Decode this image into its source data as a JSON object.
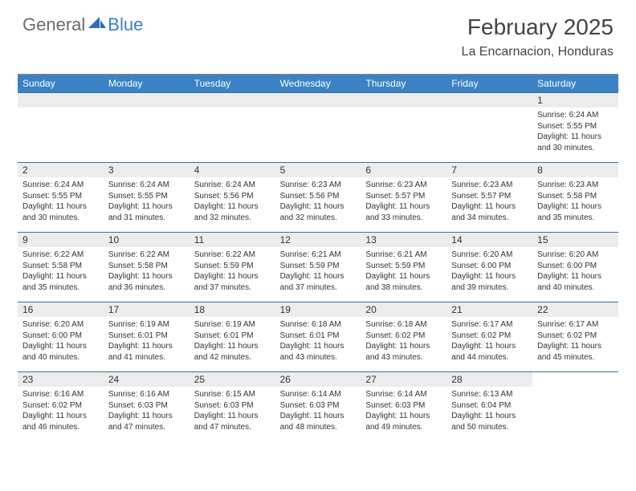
{
  "logo": {
    "general": "General",
    "blue": "Blue"
  },
  "title": "February 2025",
  "location": "La Encarnacion, Honduras",
  "colors": {
    "header_bg": "#3b82c4",
    "header_text": "#ffffff",
    "daynum_bg": "#ececec",
    "week_border": "#3b6fa0",
    "text": "#333333",
    "logo_gray": "#6b6b6b",
    "logo_blue": "#3a7fc4"
  },
  "weekdays": [
    "Sunday",
    "Monday",
    "Tuesday",
    "Wednesday",
    "Thursday",
    "Friday",
    "Saturday"
  ],
  "weeks": [
    [
      null,
      null,
      null,
      null,
      null,
      null,
      {
        "n": "1",
        "sr": "Sunrise: 6:24 AM",
        "ss": "Sunset: 5:55 PM",
        "dl": "Daylight: 11 hours and 30 minutes."
      }
    ],
    [
      {
        "n": "2",
        "sr": "Sunrise: 6:24 AM",
        "ss": "Sunset: 5:55 PM",
        "dl": "Daylight: 11 hours and 30 minutes."
      },
      {
        "n": "3",
        "sr": "Sunrise: 6:24 AM",
        "ss": "Sunset: 5:55 PM",
        "dl": "Daylight: 11 hours and 31 minutes."
      },
      {
        "n": "4",
        "sr": "Sunrise: 6:24 AM",
        "ss": "Sunset: 5:56 PM",
        "dl": "Daylight: 11 hours and 32 minutes."
      },
      {
        "n": "5",
        "sr": "Sunrise: 6:23 AM",
        "ss": "Sunset: 5:56 PM",
        "dl": "Daylight: 11 hours and 32 minutes."
      },
      {
        "n": "6",
        "sr": "Sunrise: 6:23 AM",
        "ss": "Sunset: 5:57 PM",
        "dl": "Daylight: 11 hours and 33 minutes."
      },
      {
        "n": "7",
        "sr": "Sunrise: 6:23 AM",
        "ss": "Sunset: 5:57 PM",
        "dl": "Daylight: 11 hours and 34 minutes."
      },
      {
        "n": "8",
        "sr": "Sunrise: 6:23 AM",
        "ss": "Sunset: 5:58 PM",
        "dl": "Daylight: 11 hours and 35 minutes."
      }
    ],
    [
      {
        "n": "9",
        "sr": "Sunrise: 6:22 AM",
        "ss": "Sunset: 5:58 PM",
        "dl": "Daylight: 11 hours and 35 minutes."
      },
      {
        "n": "10",
        "sr": "Sunrise: 6:22 AM",
        "ss": "Sunset: 5:58 PM",
        "dl": "Daylight: 11 hours and 36 minutes."
      },
      {
        "n": "11",
        "sr": "Sunrise: 6:22 AM",
        "ss": "Sunset: 5:59 PM",
        "dl": "Daylight: 11 hours and 37 minutes."
      },
      {
        "n": "12",
        "sr": "Sunrise: 6:21 AM",
        "ss": "Sunset: 5:59 PM",
        "dl": "Daylight: 11 hours and 37 minutes."
      },
      {
        "n": "13",
        "sr": "Sunrise: 6:21 AM",
        "ss": "Sunset: 5:59 PM",
        "dl": "Daylight: 11 hours and 38 minutes."
      },
      {
        "n": "14",
        "sr": "Sunrise: 6:20 AM",
        "ss": "Sunset: 6:00 PM",
        "dl": "Daylight: 11 hours and 39 minutes."
      },
      {
        "n": "15",
        "sr": "Sunrise: 6:20 AM",
        "ss": "Sunset: 6:00 PM",
        "dl": "Daylight: 11 hours and 40 minutes."
      }
    ],
    [
      {
        "n": "16",
        "sr": "Sunrise: 6:20 AM",
        "ss": "Sunset: 6:00 PM",
        "dl": "Daylight: 11 hours and 40 minutes."
      },
      {
        "n": "17",
        "sr": "Sunrise: 6:19 AM",
        "ss": "Sunset: 6:01 PM",
        "dl": "Daylight: 11 hours and 41 minutes."
      },
      {
        "n": "18",
        "sr": "Sunrise: 6:19 AM",
        "ss": "Sunset: 6:01 PM",
        "dl": "Daylight: 11 hours and 42 minutes."
      },
      {
        "n": "19",
        "sr": "Sunrise: 6:18 AM",
        "ss": "Sunset: 6:01 PM",
        "dl": "Daylight: 11 hours and 43 minutes."
      },
      {
        "n": "20",
        "sr": "Sunrise: 6:18 AM",
        "ss": "Sunset: 6:02 PM",
        "dl": "Daylight: 11 hours and 43 minutes."
      },
      {
        "n": "21",
        "sr": "Sunrise: 6:17 AM",
        "ss": "Sunset: 6:02 PM",
        "dl": "Daylight: 11 hours and 44 minutes."
      },
      {
        "n": "22",
        "sr": "Sunrise: 6:17 AM",
        "ss": "Sunset: 6:02 PM",
        "dl": "Daylight: 11 hours and 45 minutes."
      }
    ],
    [
      {
        "n": "23",
        "sr": "Sunrise: 6:16 AM",
        "ss": "Sunset: 6:02 PM",
        "dl": "Daylight: 11 hours and 46 minutes."
      },
      {
        "n": "24",
        "sr": "Sunrise: 6:16 AM",
        "ss": "Sunset: 6:03 PM",
        "dl": "Daylight: 11 hours and 47 minutes."
      },
      {
        "n": "25",
        "sr": "Sunrise: 6:15 AM",
        "ss": "Sunset: 6:03 PM",
        "dl": "Daylight: 11 hours and 47 minutes."
      },
      {
        "n": "26",
        "sr": "Sunrise: 6:14 AM",
        "ss": "Sunset: 6:03 PM",
        "dl": "Daylight: 11 hours and 48 minutes."
      },
      {
        "n": "27",
        "sr": "Sunrise: 6:14 AM",
        "ss": "Sunset: 6:03 PM",
        "dl": "Daylight: 11 hours and 49 minutes."
      },
      {
        "n": "28",
        "sr": "Sunrise: 6:13 AM",
        "ss": "Sunset: 6:04 PM",
        "dl": "Daylight: 11 hours and 50 minutes."
      },
      null
    ]
  ]
}
